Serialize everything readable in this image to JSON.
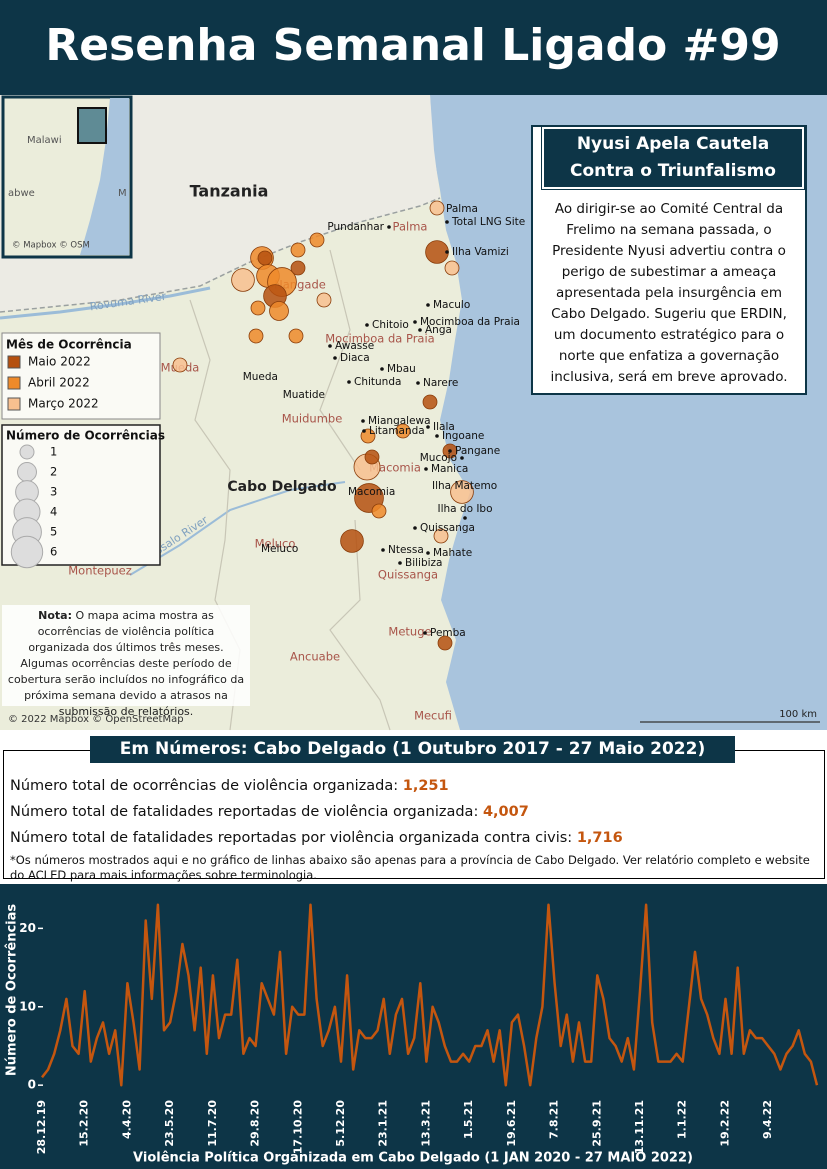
{
  "header": {
    "title": "Resenha Semanal Ligado #99"
  },
  "map": {
    "big_labels": [
      "Tanzania",
      "Cabo Delgado"
    ],
    "districts": [
      "Palma",
      "Nangade",
      "Mocimboa da Praia",
      "Mueda",
      "Muidumbe",
      "Macomia",
      "Meluco",
      "Montepuez",
      "Quissanga",
      "Metuge",
      "Ancuabe",
      "Mecufi"
    ],
    "towns": [
      "Palma",
      "Total LNG Site",
      "Ilha Vamizi",
      "Pundanhar",
      "Maculo",
      "Mocimboa da Praia",
      "Chitoio",
      "Anga",
      "Awasse",
      "Diaca",
      "Mbau",
      "Chitunda",
      "Narere",
      "Mueda",
      "Muatide",
      "Miangalewa",
      "Litamanda",
      "Ilala",
      "Ingoane",
      "Pangane",
      "Mucojo",
      "Manica",
      "Ilha Matemo",
      "Macomia",
      "Ilha do Ibo",
      "Quissanga",
      "Ntessa",
      "Mahate",
      "Bilibiza",
      "Meluco",
      "Pemba"
    ],
    "rivers": [
      "Rovuma River",
      "Messalo River"
    ],
    "inset_labels": [
      "Malawi",
      "abwe",
      "M"
    ],
    "inset_credit": "© Mapbox © OSM",
    "credit": "© 2022 Mapbox © OpenStreetMap",
    "scale": "100 km",
    "events": [
      {
        "month": 2,
        "count": 1
      },
      {
        "month": 0,
        "count": 3
      },
      {
        "month": 2,
        "count": 1
      },
      {
        "month": 1,
        "count": 1
      },
      {
        "month": 1,
        "count": 1
      },
      {
        "month": 0,
        "count": 1
      },
      {
        "month": 1,
        "count": 3
      },
      {
        "month": 0,
        "count": 1
      },
      {
        "month": 2,
        "count": 3
      },
      {
        "month": 1,
        "count": 3
      },
      {
        "month": 1,
        "count": 5
      },
      {
        "month": 0,
        "count": 3
      },
      {
        "month": 1,
        "count": 1
      },
      {
        "month": 1,
        "count": 2
      },
      {
        "month": 2,
        "count": 1
      },
      {
        "month": 1,
        "count": 1
      },
      {
        "month": 1,
        "count": 1
      },
      {
        "month": 2,
        "count": 1
      },
      {
        "month": 0,
        "count": 1
      },
      {
        "month": 1,
        "count": 1
      },
      {
        "month": 1,
        "count": 1
      },
      {
        "month": 0,
        "count": 1
      },
      {
        "month": 2,
        "count": 4
      },
      {
        "month": 0,
        "count": 1
      },
      {
        "month": 0,
        "count": 5
      },
      {
        "month": 2,
        "count": 3
      },
      {
        "month": 1,
        "count": 1
      },
      {
        "month": 0,
        "count": 3
      },
      {
        "month": 2,
        "count": 1
      },
      {
        "month": 0,
        "count": 1
      }
    ]
  },
  "legend": {
    "month_title": "Mês de Ocorrência",
    "months": [
      {
        "label": "Maio 2022",
        "color": "#b5500f"
      },
      {
        "label": "Abril 2022",
        "color": "#ee8a2a"
      },
      {
        "label": "Março 2022",
        "color": "#f8c08f"
      }
    ],
    "size_title": "Número de Ocorrências",
    "sizes": [
      1,
      2,
      3,
      4,
      5,
      6
    ]
  },
  "note": {
    "label": "Nota:",
    "text": "O mapa acima mostra as ocorrências de violência política organizada dos últimos três meses. Algumas ocorrências deste período de cobertura serão incluídos no infográfico da próxima semana devido a atrasos na submissão de relatórios."
  },
  "callout": {
    "title": "Nyusi Apela Cautela Contra o Triunfalismo",
    "text": "Ao dirigir-se ao Comité Central da Frelimo na semana passada, o Presidente Nyusi advertiu contra o perigo de subestimar a ameaça apresentada pela insurgência em Cabo Delgado. Sugeriu que ERDIN, um documento estratégico para o norte que enfatiza a governação inclusiva, será em breve aprovado."
  },
  "stats": {
    "title": "Em Números: Cabo Delgado (1 Outubro 2017 - 27 Maio 2022)",
    "rows": [
      {
        "label": "Número total de ocorrências de violência organizada:",
        "value": "1,251"
      },
      {
        "label": "Número total de fatalidades reportadas de violência organizada:",
        "value": "4,007"
      },
      {
        "label": "Número total de fatalidades reportadas por violência organizada contra civis:",
        "value": "1,716"
      }
    ],
    "footnote": "*Os números mostrados aqui e no gráfico de linhas abaixo são apenas para a província de Cabo Delgado. Ver relatório completo e website do ACLED para mais informações sobre terminologia."
  },
  "chart_data": {
    "type": "line",
    "x_label": "Violência Política Organizada em Cabo Delgado (1 JAN 2020 - 27 MAIO 2022)",
    "y_label": "Número de Ocorrências",
    "color": "#c4560f",
    "ylim": [
      -1,
      24
    ],
    "yticks": [
      0,
      10,
      20
    ],
    "categories": [
      "28.12.19",
      null,
      null,
      null,
      null,
      null,
      null,
      "15.2.20",
      null,
      null,
      null,
      null,
      null,
      null,
      "4.4.20",
      null,
      null,
      null,
      null,
      null,
      null,
      "23.5.20",
      null,
      null,
      null,
      null,
      null,
      null,
      "11.7.20",
      null,
      null,
      null,
      null,
      null,
      null,
      "29.8.20",
      null,
      null,
      null,
      null,
      null,
      null,
      "17.10.20",
      null,
      null,
      null,
      null,
      null,
      null,
      "5.12.20",
      null,
      null,
      null,
      null,
      null,
      null,
      "23.1.21",
      null,
      null,
      null,
      null,
      null,
      null,
      "13.3.21",
      null,
      null,
      null,
      null,
      null,
      null,
      "1.5.21",
      null,
      null,
      null,
      null,
      null,
      null,
      "19.6.21",
      null,
      null,
      null,
      null,
      null,
      null,
      "7.8.21",
      null,
      null,
      null,
      null,
      null,
      null,
      "25.9.21",
      null,
      null,
      null,
      null,
      null,
      null,
      "13.11.21",
      null,
      null,
      null,
      null,
      null,
      null,
      "1.1.22",
      null,
      null,
      null,
      null,
      null,
      null,
      "19.2.22",
      null,
      null,
      null,
      null,
      null,
      null,
      "9.4.22",
      null,
      null,
      null,
      null,
      null,
      null,
      null,
      null
    ],
    "values": [
      1,
      2,
      4,
      7,
      11,
      5,
      4,
      12,
      3,
      6,
      8,
      4,
      7,
      0,
      13,
      8,
      2,
      21,
      11,
      23,
      7,
      8,
      12,
      18,
      14,
      7,
      15,
      4,
      14,
      6,
      9,
      9,
      16,
      4,
      6,
      5,
      13,
      11,
      9,
      17,
      4,
      10,
      9,
      9,
      23,
      11,
      5,
      7,
      10,
      3,
      14,
      2,
      7,
      6,
      6,
      7,
      11,
      4,
      9,
      11,
      4,
      6,
      13,
      3,
      10,
      8,
      5,
      3,
      3,
      4,
      3,
      5,
      5,
      7,
      3,
      7,
      0,
      8,
      9,
      5,
      0,
      6,
      10,
      23,
      13,
      5,
      9,
      3,
      8,
      3,
      3,
      14,
      11,
      6,
      5,
      3,
      6,
      2,
      12,
      23,
      8,
      3,
      3,
      3,
      4,
      3,
      10,
      17,
      11,
      9,
      6,
      4,
      11,
      4,
      15,
      4,
      7,
      6,
      6,
      5,
      4,
      2,
      4,
      5,
      7,
      4,
      3,
      0
    ]
  }
}
